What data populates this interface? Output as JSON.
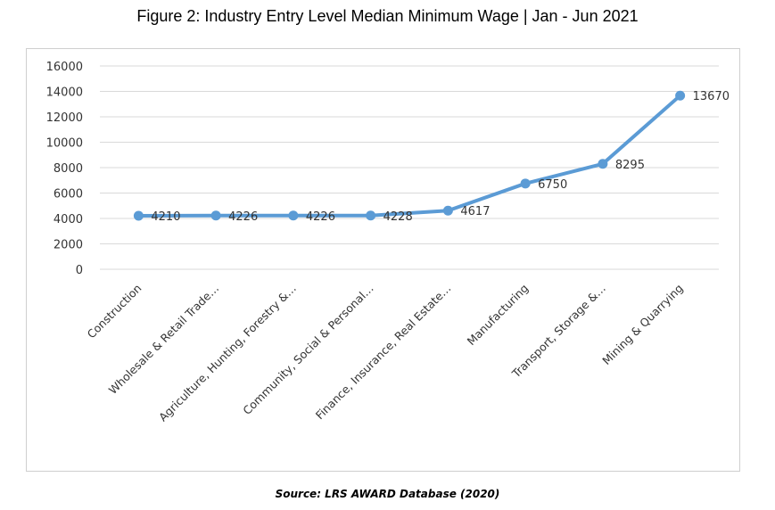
{
  "chart_data": {
    "type": "line",
    "title": "Figure 2: Industry Entry Level Median Minimum Wage | Jan - Jun 2021",
    "categories": [
      "Construction",
      "Wholesale & Retail Trade…",
      "Agriculture, Hunting, Forestry &…",
      "Community, Social & Personal…",
      "Finance, Insurance, Real Estate…",
      "Manufacturing",
      "Transport, Storage &…",
      "Mining & Quarrying"
    ],
    "series": [
      {
        "name": "",
        "values": [
          4210,
          4226,
          4226,
          4228,
          4617,
          6750,
          8295,
          13670
        ]
      }
    ],
    "data_labels": [
      "4210",
      "4226",
      "4226",
      "4228",
      "4617",
      "6750",
      "8295",
      "13670"
    ],
    "yticks": [
      0,
      2000,
      4000,
      6000,
      8000,
      10000,
      12000,
      14000,
      16000
    ],
    "ylim": [
      0,
      16000
    ],
    "xlabel": "",
    "ylabel": "",
    "grid": true,
    "legend": "none",
    "line_color": "#5b9bd5",
    "grid_color": "#d9d9d9"
  },
  "source": "Source: LRS AWARD Database (2020)"
}
